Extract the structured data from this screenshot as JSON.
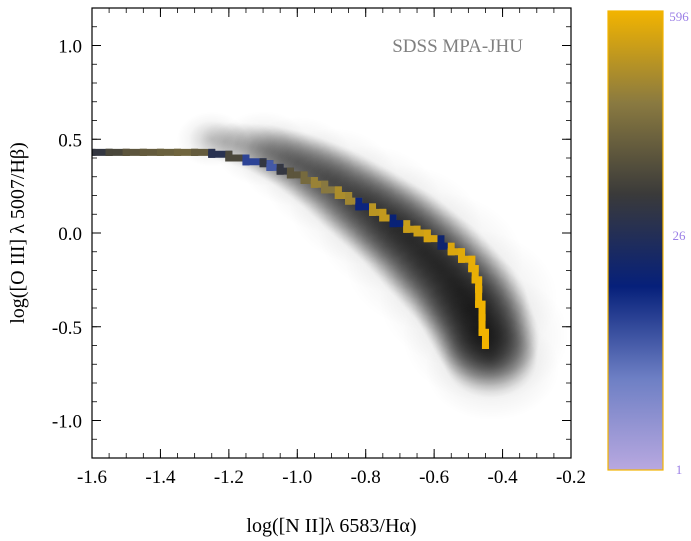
{
  "chart_data": {
    "type": "heatmap",
    "title": "",
    "xlabel": "log([N II]λ 6583/Hα)",
    "ylabel": "log([O III] λ 5007/Hβ)",
    "xlim": [
      -1.6,
      -0.2
    ],
    "ylim": [
      -1.2,
      1.2
    ],
    "x_ticks": [
      -1.6,
      -1.4,
      -1.2,
      -1.0,
      -0.8,
      -0.6,
      -0.4,
      -0.2
    ],
    "x_tick_labels": [
      "-1.6",
      "-1.4",
      "-1.2",
      "-1.0",
      "-0.8",
      "-0.6",
      "-0.4",
      "-0.2"
    ],
    "y_ticks": [
      -1.0,
      -0.5,
      0.0,
      0.5,
      1.0
    ],
    "y_tick_labels": [
      "-1.0",
      "-0.5",
      "0.0",
      "0.5",
      "1.0"
    ],
    "annotation": "SDSS MPA-JHU",
    "colorbar": {
      "scale": "log",
      "min": 1,
      "max": 596,
      "labels": [
        "596",
        "26",
        "1"
      ],
      "label_values": [
        596,
        26,
        1
      ],
      "stops": [
        "#b8a8e0",
        "#6d7fc4",
        "#06207a",
        "#3a3a3a",
        "#8a7a40",
        "#f2b400"
      ],
      "border_color": "#f2b400",
      "label_color": "#9b7fe6"
    },
    "density": {
      "description_ridge": [
        [
          -1.25,
          0.5
        ],
        [
          -1.1,
          0.45
        ],
        [
          -1.0,
          0.38
        ],
        [
          -0.9,
          0.28
        ],
        [
          -0.8,
          0.15
        ],
        [
          -0.7,
          0.02
        ],
        [
          -0.6,
          -0.15
        ],
        [
          -0.5,
          -0.35
        ],
        [
          -0.45,
          -0.55
        ],
        [
          -0.43,
          -0.72
        ]
      ]
    },
    "series": [
      {
        "values_type": "median_track",
        "x": [
          -1.6,
          -1.55,
          -1.5,
          -1.45,
          -1.4,
          -1.35,
          -1.3,
          -1.25,
          -1.2,
          -1.15,
          -1.1,
          -1.08,
          -1.05,
          -1.02,
          -0.98,
          -0.95,
          -0.92,
          -0.88,
          -0.85,
          -0.82,
          -0.78,
          -0.75,
          -0.72,
          -0.68,
          -0.65,
          -0.62,
          -0.58,
          -0.55,
          -0.52,
          -0.49,
          -0.48,
          -0.47,
          -0.47,
          -0.46,
          -0.46,
          -0.45
        ],
        "y": [
          0.43,
          0.43,
          0.43,
          0.43,
          0.43,
          0.43,
          0.43,
          0.42,
          0.4,
          0.38,
          0.37,
          0.35,
          0.33,
          0.31,
          0.28,
          0.26,
          0.23,
          0.2,
          0.17,
          0.14,
          0.11,
          0.08,
          0.05,
          0.02,
          0.0,
          -0.03,
          -0.07,
          -0.1,
          -0.14,
          -0.19,
          -0.25,
          -0.3,
          -0.38,
          -0.45,
          -0.53,
          -0.6
        ],
        "counts": [
          40,
          60,
          80,
          90,
          100,
          110,
          90,
          30,
          60,
          8,
          40,
          6,
          40,
          80,
          120,
          200,
          160,
          250,
          220,
          12,
          300,
          330,
          14,
          360,
          380,
          420,
          16,
          450,
          480,
          520,
          540,
          560,
          570,
          580,
          590,
          596
        ]
      }
    ]
  }
}
